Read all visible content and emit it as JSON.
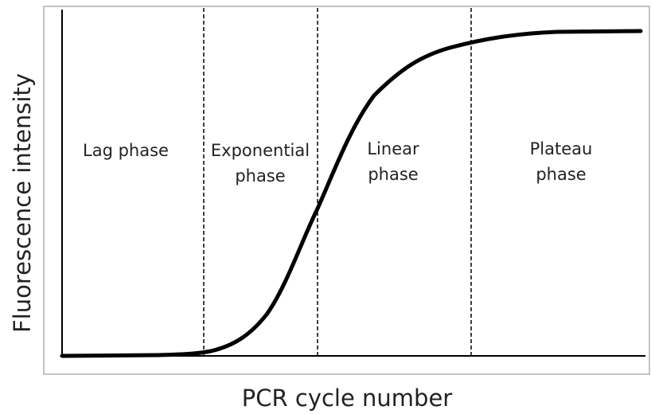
{
  "diagram": {
    "y_axis_label": "Fluorescence intensity",
    "x_axis_label": "PCR cycle number",
    "phases": [
      {
        "lines": [
          "Lag phase"
        ]
      },
      {
        "lines": [
          "Exponential",
          "phase"
        ]
      },
      {
        "lines": [
          "Linear",
          "phase"
        ]
      },
      {
        "lines": [
          "Plateau",
          "phase"
        ]
      }
    ]
  }
}
